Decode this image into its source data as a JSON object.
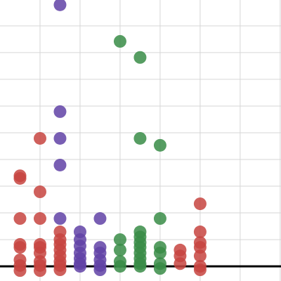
{
  "chart_data": {
    "type": "scatter",
    "xlim": [
      0,
      7.02
    ],
    "ylim": [
      -0.55,
      9.97
    ],
    "xticks": [
      1,
      2,
      3,
      4,
      5,
      6,
      7
    ],
    "yticks": [
      1,
      2,
      3,
      4,
      5,
      6,
      7,
      8,
      9
    ],
    "grid": true,
    "series": [
      {
        "name": "red",
        "color": "#c74440",
        "x": [
          0.5,
          0.5,
          0.5,
          0.5,
          0.5,
          0.5,
          0.5,
          0.5,
          1,
          1,
          1,
          1,
          1,
          1,
          1,
          1,
          1,
          1.5,
          1.5,
          1.5,
          1.5,
          1.5,
          1.5,
          1.5,
          1.5,
          4.5,
          4.5,
          4.5,
          5,
          5,
          5,
          5,
          5,
          5,
          5
        ],
        "values": [
          3.39,
          3.29,
          1.79,
          0.82,
          0.71,
          0.24,
          0.03,
          -0.16,
          4.79,
          2.79,
          1.79,
          0.82,
          0.71,
          0.5,
          0.18,
          0.03,
          -0.16,
          1.29,
          1.0,
          0.82,
          0.61,
          0.39,
          0.18,
          0.03,
          -0.13,
          0.61,
          0.39,
          0.1,
          2.34,
          1.29,
          0.89,
          0.71,
          0.39,
          0,
          -0.13
        ]
      },
      {
        "name": "purple",
        "color": "#6042a6",
        "x": [
          1.5,
          1.5,
          1.5,
          1.5,
          1.5,
          2,
          2,
          2,
          2,
          2,
          2,
          2,
          2.5,
          2.5,
          2.5,
          2.5,
          2.5,
          2.5
        ],
        "values": [
          9.79,
          5.79,
          4.79,
          3.79,
          1.79,
          1.29,
          1.0,
          0.76,
          0.5,
          0.29,
          0.1,
          0,
          1.79,
          0.71,
          0.5,
          0.24,
          0.03,
          -0.13
        ]
      },
      {
        "name": "green",
        "color": "#388c46",
        "x": [
          3,
          3,
          3,
          3,
          3,
          3.5,
          3.5,
          3.5,
          3.5,
          3.5,
          3.5,
          3.5,
          3.5,
          3.5,
          3.5,
          4,
          4,
          4,
          4,
          4,
          4
        ],
        "values": [
          8.42,
          1.0,
          0.61,
          0.18,
          0,
          7.82,
          4.79,
          1.29,
          1.1,
          0.89,
          0.71,
          0.5,
          0.29,
          0.1,
          0,
          4.53,
          1.79,
          0.71,
          0.5,
          0.1,
          -0.08
        ]
      }
    ]
  }
}
